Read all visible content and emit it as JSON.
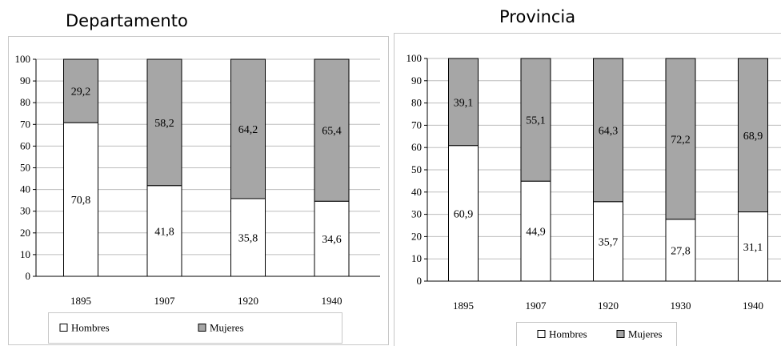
{
  "colors": {
    "hombres": "#ffffff",
    "mujeres": "#a6a6a6",
    "stroke": "#000000",
    "frame": "#c8c8c8",
    "grid": "#bdbdbd"
  },
  "chart_data": [
    {
      "type": "bar",
      "stacked": true,
      "title": "Departamento",
      "categories": [
        "1895",
        "1907",
        "1920",
        "1940"
      ],
      "series": [
        {
          "name": "Hombres",
          "values": [
            70.8,
            41.8,
            35.8,
            34.6
          ],
          "labels": [
            "70,8",
            "41,8",
            "35,8",
            "34,6"
          ]
        },
        {
          "name": "Mujeres",
          "values": [
            29.2,
            58.2,
            64.2,
            65.4
          ],
          "labels": [
            "29,2",
            "58,2",
            "64,2",
            "65,4"
          ]
        }
      ],
      "yticks": [
        "0",
        "10",
        "20",
        "30",
        "40",
        "50",
        "60",
        "70",
        "80",
        "90",
        "100"
      ],
      "ylim": [
        0,
        100
      ],
      "grid": true,
      "legend": "bottom"
    },
    {
      "type": "bar",
      "stacked": true,
      "title": "Provincia",
      "categories": [
        "1895",
        "1907",
        "1920",
        "1930",
        "1940"
      ],
      "series": [
        {
          "name": "Hombres",
          "values": [
            60.9,
            44.9,
            35.7,
            27.8,
            31.1
          ],
          "labels": [
            "60,9",
            "44,9",
            "35,7",
            "27,8",
            "31,1"
          ]
        },
        {
          "name": "Mujeres",
          "values": [
            39.1,
            55.1,
            64.3,
            72.2,
            68.9
          ],
          "labels": [
            "39,1",
            "55,1",
            "64,3",
            "72,2",
            "68,9"
          ]
        }
      ],
      "yticks": [
        "0",
        "10",
        "20",
        "30",
        "40",
        "50",
        "60",
        "70",
        "80",
        "90",
        "100"
      ],
      "ylim": [
        0,
        100
      ],
      "grid": true,
      "legend": "bottom"
    }
  ]
}
